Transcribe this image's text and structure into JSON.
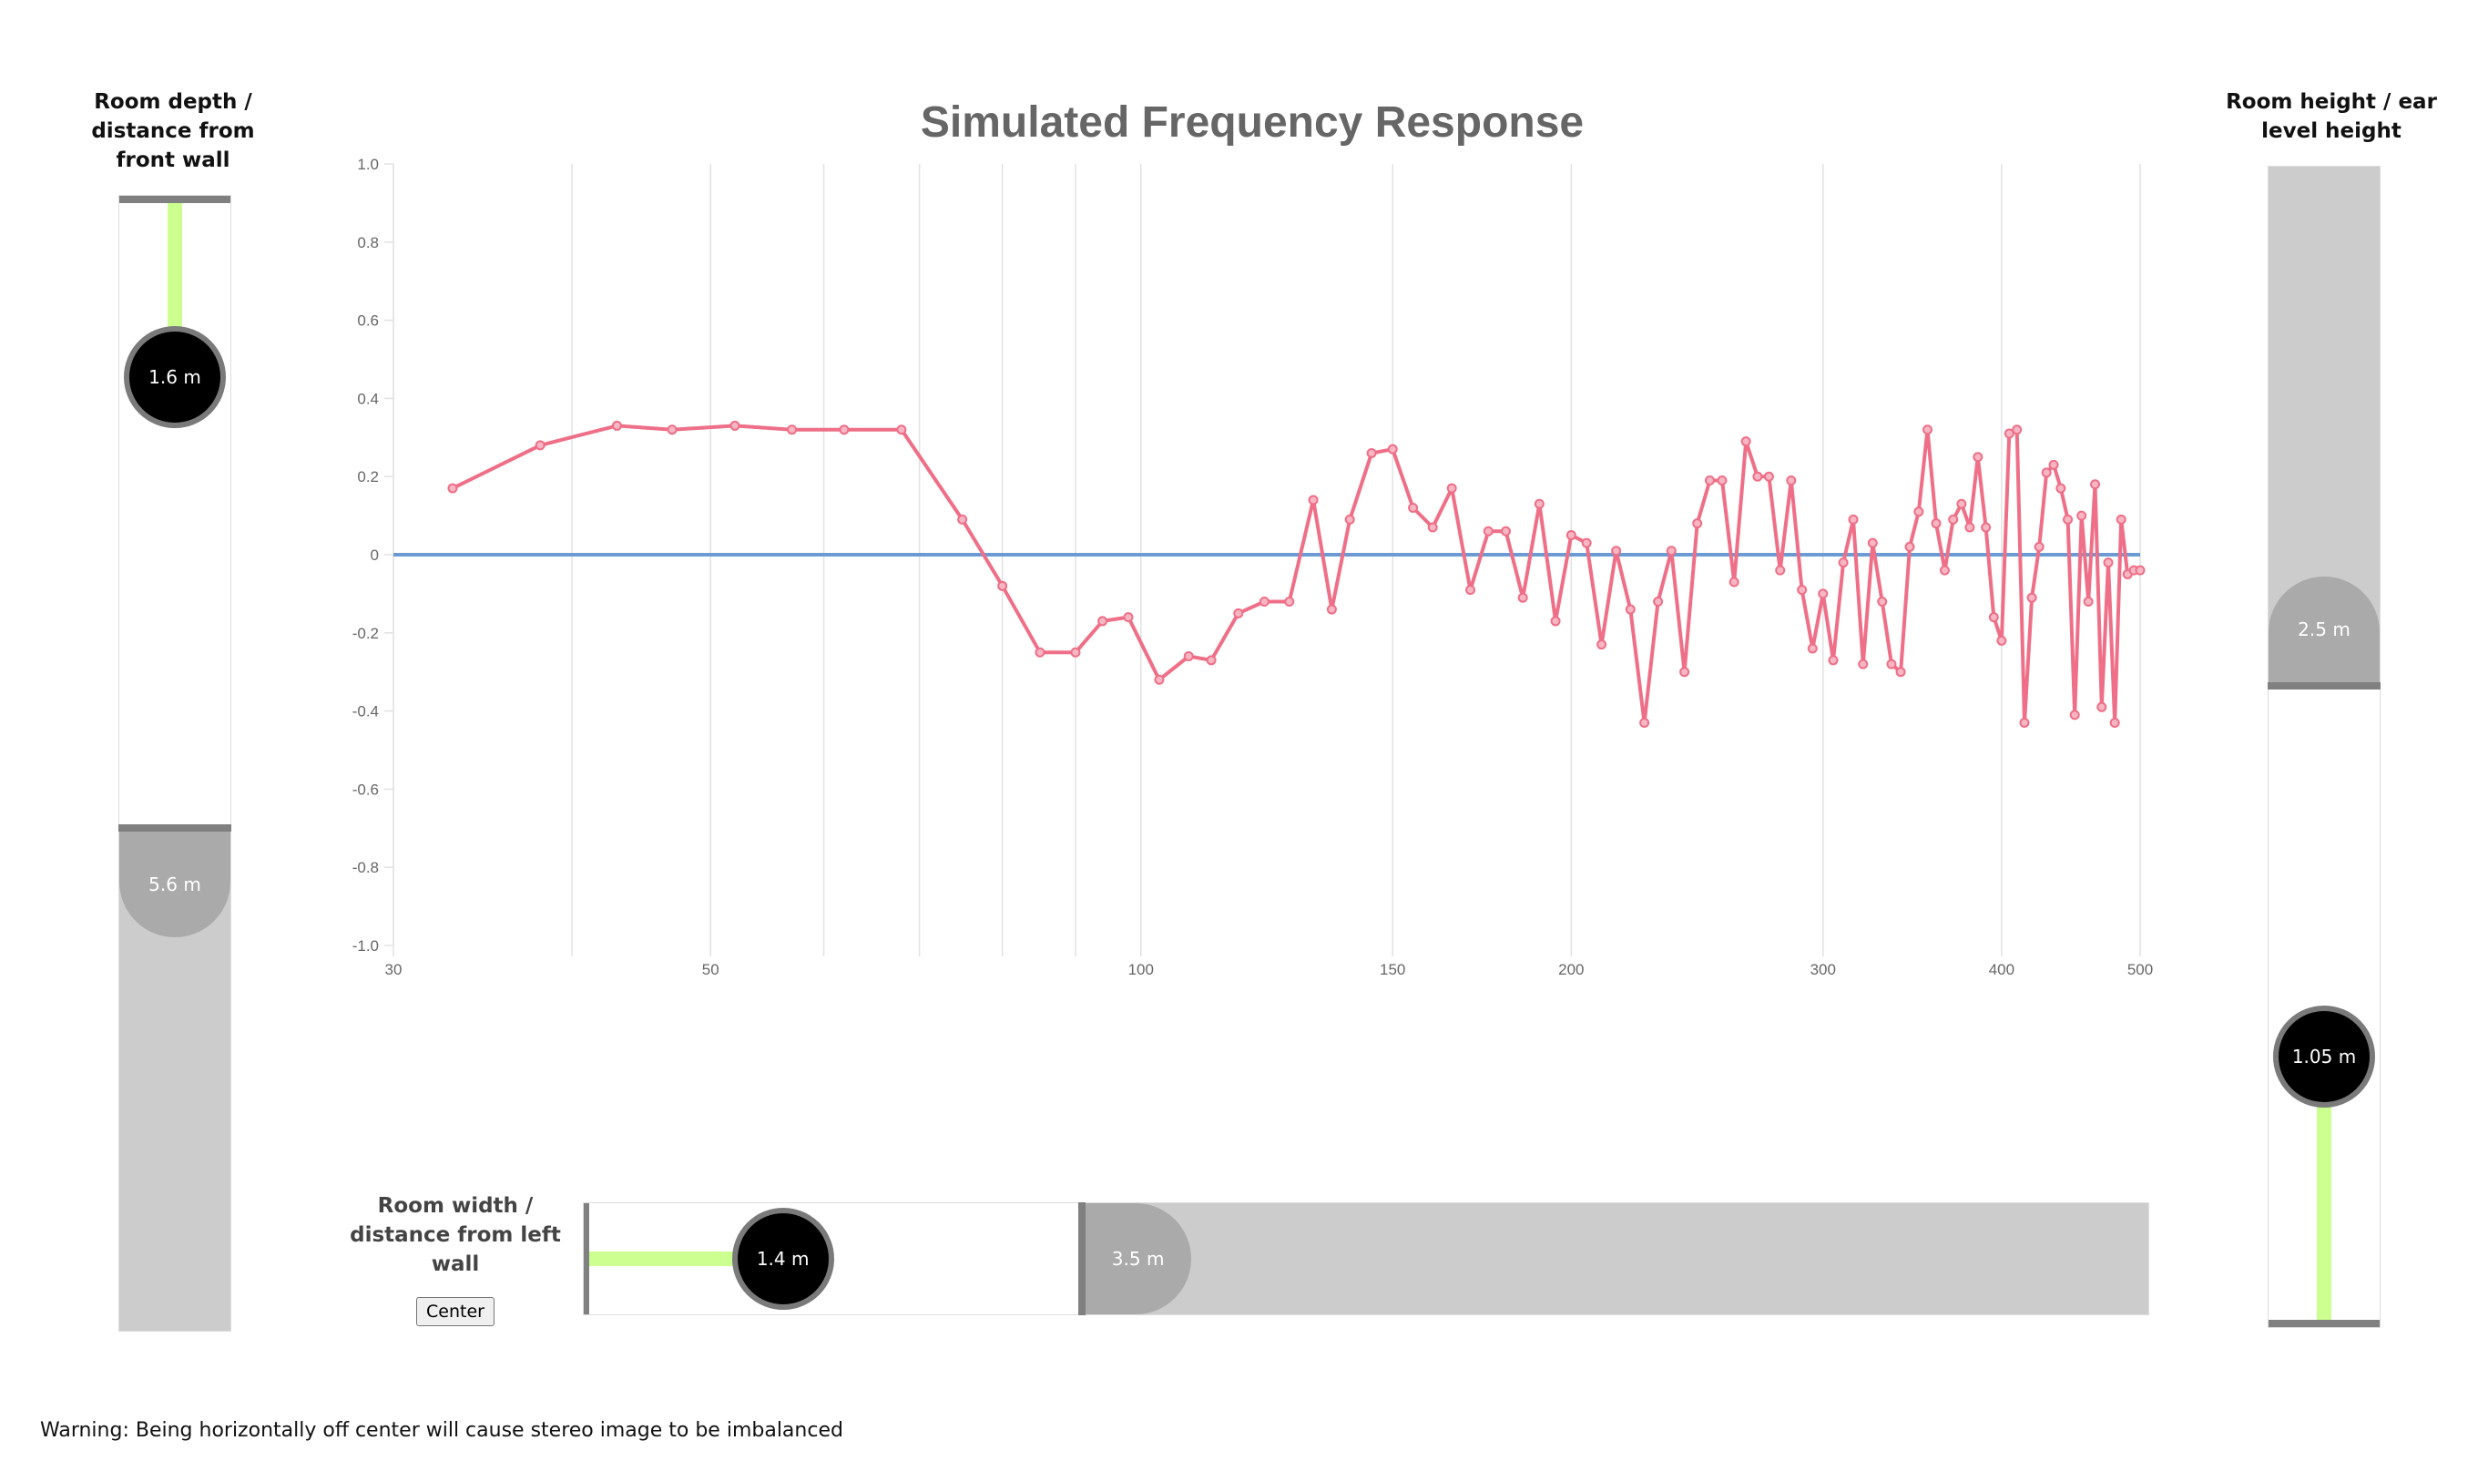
{
  "depth_slider": {
    "label": "Room depth / distance from front wall",
    "listener_value": "1.6 m",
    "room_value": "5.6 m",
    "listener_m": 1.6,
    "room_m": 5.6,
    "max_m": 10
  },
  "height_slider": {
    "label": "Room height / ear level height",
    "listener_value": "1.05 m",
    "room_value": "2.5 m",
    "listener_m": 1.05,
    "room_m": 2.5,
    "max_m": 4.5
  },
  "width_slider": {
    "label": "Room width / distance from left wall",
    "listener_value": "1.4 m",
    "room_value": "3.5 m",
    "listener_m": 1.4,
    "room_m": 3.5,
    "max_m": 11,
    "center_button": "Center"
  },
  "warning": "Warning: Being horizontally off center will cause stereo image to be imbalanced",
  "colors": {
    "response_line": "#ee6f87",
    "baseline": "#6b9bd2",
    "listener_line": "#ccff90",
    "knob": "#000000",
    "room_knob": "#aaaaaa"
  },
  "chart_data": {
    "type": "line",
    "title": "Simulated Frequency Response",
    "x_scale": "log",
    "xlim": [
      30,
      500
    ],
    "ylim": [
      -1.0,
      1.0
    ],
    "x_ticks": [
      30,
      50,
      100,
      150,
      200,
      300,
      400,
      500
    ],
    "x_grid": [
      30,
      40,
      50,
      60,
      70,
      80,
      90,
      100,
      150,
      200,
      300,
      400,
      500
    ],
    "y_ticks": [
      "1.0",
      "0.8",
      "0.6",
      "0.4",
      "0.2",
      "0",
      "-0.2",
      "-0.4",
      "-0.6",
      "-0.8",
      "-1.0"
    ],
    "grid": true,
    "legend": "none",
    "baseline": {
      "y": 0
    },
    "series": [
      {
        "x": [
          33,
          38,
          43,
          47,
          52,
          57,
          62,
          68,
          75,
          80,
          85,
          90,
          94,
          98,
          103,
          108,
          112,
          117,
          122,
          127,
          132,
          136,
          140,
          145,
          150,
          155,
          160,
          165,
          170,
          175,
          180,
          185,
          190,
          195,
          200,
          205,
          210,
          215,
          220,
          225,
          230,
          235,
          240,
          245,
          250,
          255,
          260,
          265,
          270,
          275,
          280,
          285,
          290,
          295,
          300,
          305,
          310,
          315,
          320,
          325,
          330,
          335,
          340,
          345,
          350,
          355,
          360,
          365,
          370,
          375,
          380,
          385,
          390,
          395,
          400,
          405,
          410,
          415,
          420,
          425,
          430,
          435,
          440,
          445,
          450,
          455,
          460,
          465,
          470,
          475,
          480,
          485,
          490,
          495,
          500
        ],
        "y": [
          0.17,
          0.28,
          0.33,
          0.32,
          0.33,
          0.32,
          0.32,
          0.32,
          0.09,
          -0.08,
          -0.25,
          -0.25,
          -0.17,
          -0.16,
          -0.32,
          -0.26,
          -0.27,
          -0.15,
          -0.12,
          -0.12,
          0.14,
          -0.14,
          0.09,
          0.26,
          0.27,
          0.12,
          0.07,
          0.17,
          -0.09,
          0.06,
          0.06,
          -0.11,
          0.13,
          -0.17,
          0.05,
          0.03,
          -0.23,
          0.01,
          -0.14,
          -0.43,
          -0.12,
          0.01,
          -0.3,
          0.08,
          0.19,
          0.19,
          -0.07,
          0.29,
          0.2,
          0.2,
          -0.04,
          0.19,
          -0.09,
          -0.24,
          -0.1,
          -0.27,
          -0.02,
          0.09,
          -0.28,
          0.03,
          -0.12,
          -0.28,
          -0.3,
          0.02,
          0.11,
          0.32,
          0.08,
          -0.04,
          0.09,
          0.13,
          0.07,
          0.25,
          0.07,
          -0.16,
          -0.22,
          0.31,
          0.32,
          -0.43,
          -0.11,
          0.02,
          0.21,
          0.23,
          0.17,
          0.09,
          -0.41,
          0.1,
          -0.12,
          0.18,
          -0.39,
          -0.02,
          -0.43,
          0.09,
          -0.05,
          -0.04,
          -0.04
        ]
      }
    ]
  }
}
